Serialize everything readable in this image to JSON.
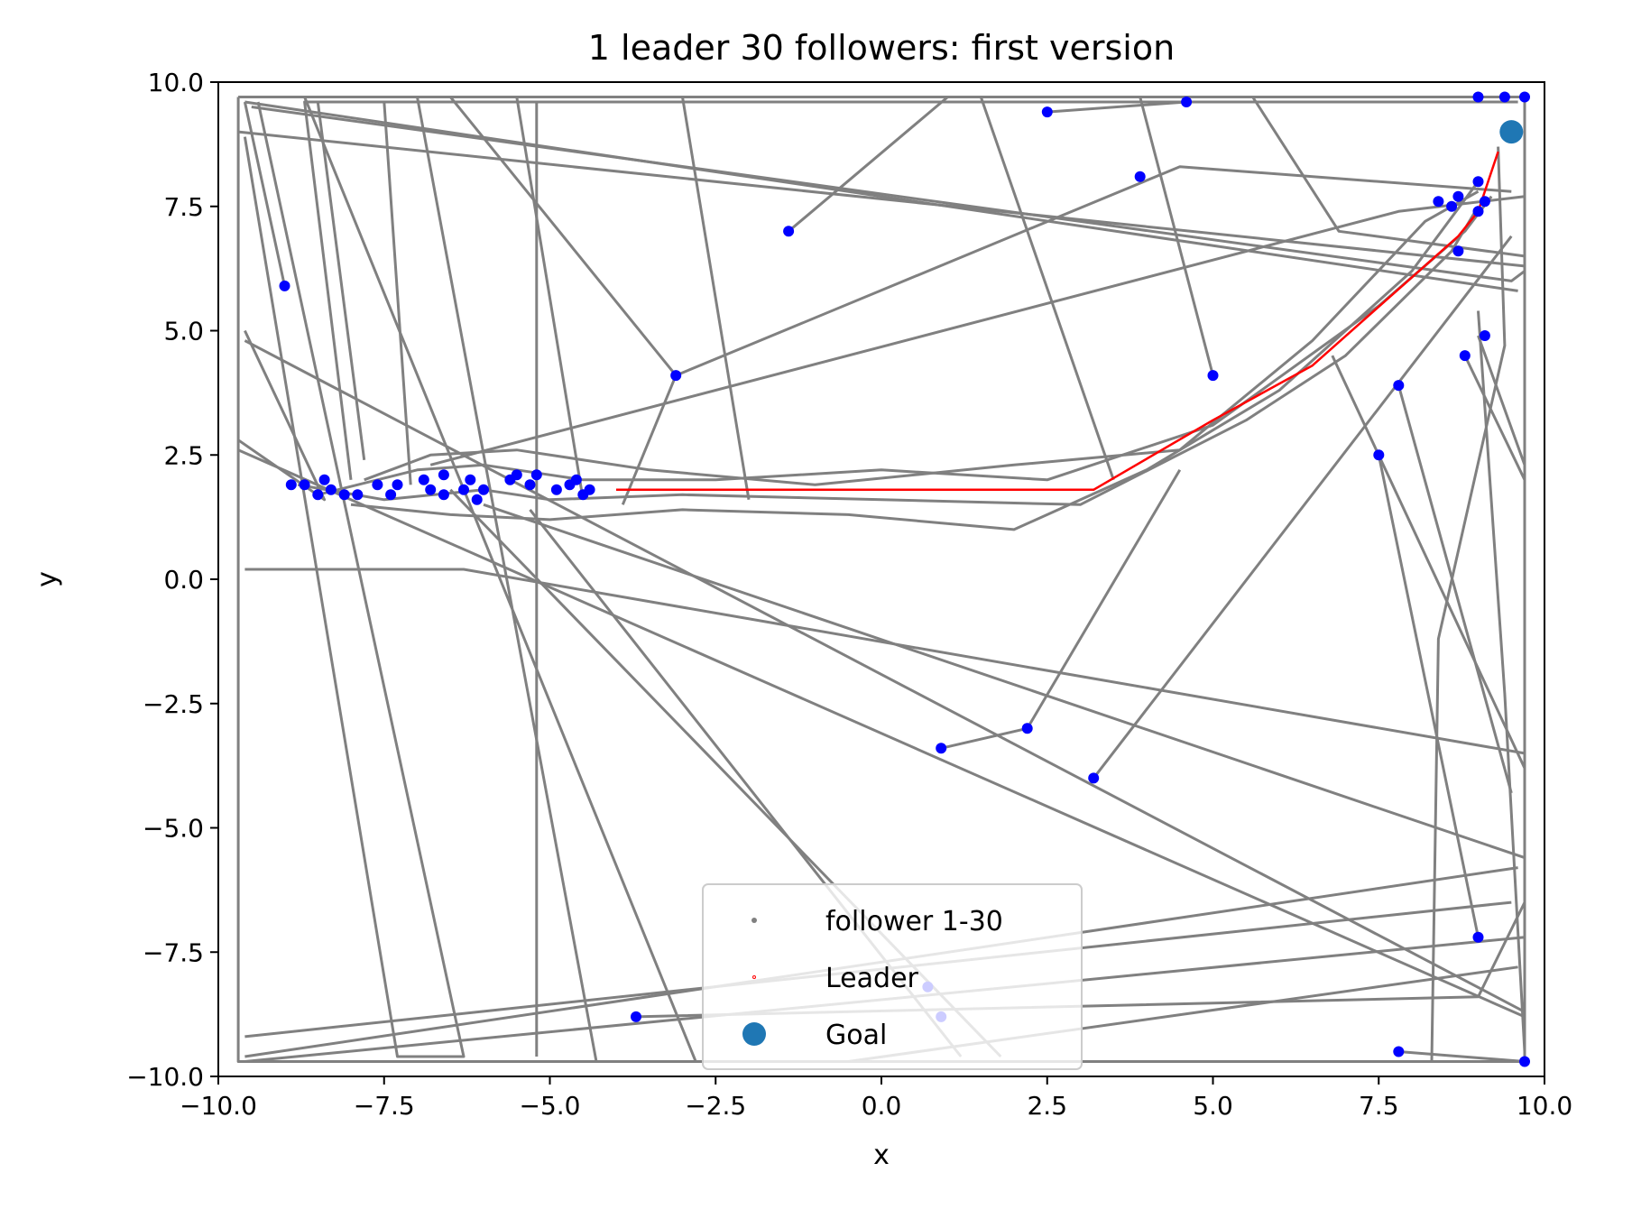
{
  "chart_data": {
    "type": "line",
    "title": "1 leader 30 followers: first version",
    "xlabel": "x",
    "ylabel": "y",
    "xlim": [
      -10,
      10
    ],
    "ylim": [
      -10,
      10
    ],
    "xticks": [
      "−10.0",
      "−7.5",
      "−5.0",
      "−2.5",
      "0.0",
      "2.5",
      "5.0",
      "7.5",
      "10.0"
    ],
    "yticks": [
      "−10.0",
      "−7.5",
      "−5.0",
      "−2.5",
      "0.0",
      "2.5",
      "5.0",
      "7.5",
      "10.0"
    ],
    "grid": false,
    "legend_position": "lower-center",
    "legend": [
      {
        "label": "follower 1-30",
        "color": "#808080",
        "marker": "small-point"
      },
      {
        "label": "Leader",
        "color": "#ff0000",
        "marker": "tiny-point"
      },
      {
        "label": "Goal",
        "color": "#1f77b4",
        "marker": "large-circle"
      }
    ],
    "colors": {
      "follower": "#808080",
      "leader": "#ff0000",
      "goal": "#1f77b4",
      "follower_position": "#0000ff"
    },
    "leader_path": [
      [
        -4.0,
        1.8
      ],
      [
        3.2,
        1.8
      ],
      [
        5.0,
        3.2
      ],
      [
        6.5,
        4.3
      ],
      [
        8.7,
        6.9
      ],
      [
        9.0,
        7.4
      ],
      [
        9.3,
        8.6
      ]
    ],
    "goal": [
      9.5,
      9.0
    ],
    "follower_paths": [
      [
        [
          -9.7,
          9.7
        ],
        [
          9.7,
          9.7
        ],
        [
          9.7,
          -9.7
        ],
        [
          -9.7,
          -9.7
        ],
        [
          -9.7,
          9.7
        ]
      ],
      [
        [
          -9.5,
          9.5
        ],
        [
          9.5,
          6.0
        ],
        [
          9.7,
          6.2
        ]
      ],
      [
        [
          -9.7,
          9.0
        ],
        [
          9.7,
          6.3
        ]
      ],
      [
        [
          -9.6,
          9.6
        ],
        [
          9.6,
          5.8
        ]
      ],
      [
        [
          -9.6,
          8.9
        ],
        [
          -7.3,
          -9.6
        ],
        [
          -6.3,
          -9.6
        ],
        [
          -9.4,
          9.6
        ]
      ],
      [
        [
          -7.0,
          9.7
        ],
        [
          -4.3,
          -9.7
        ],
        [
          -2.8,
          -9.7
        ],
        [
          -8.7,
          9.7
        ]
      ],
      [
        [
          -5.2,
          9.6
        ],
        [
          -5.2,
          -9.6
        ]
      ],
      [
        [
          -9.6,
          5.0
        ],
        [
          -8.4,
          1.6
        ],
        [
          -9.7,
          2.8
        ]
      ],
      [
        [
          -9.6,
          4.8
        ],
        [
          9.7,
          -8.7
        ]
      ],
      [
        [
          -9.7,
          2.6
        ],
        [
          9.7,
          -8.8
        ]
      ],
      [
        [
          -6.0,
          1.5
        ],
        [
          9.7,
          -5.6
        ]
      ],
      [
        [
          -6.5,
          1.8
        ],
        [
          1.8,
          -9.6
        ]
      ],
      [
        [
          -5.3,
          1.4
        ],
        [
          1.2,
          -9.6
        ]
      ],
      [
        [
          -6.8,
          2.3
        ],
        [
          7.8,
          7.4
        ],
        [
          9.7,
          7.7
        ]
      ],
      [
        [
          -7.8,
          2.4
        ],
        [
          -8.5,
          9.6
        ],
        [
          9.6,
          9.6
        ]
      ],
      [
        [
          -8.0,
          2.0
        ],
        [
          -8.7,
          9.6
        ],
        [
          -7.5,
          9.6
        ],
        [
          -7.1,
          1.9
        ]
      ],
      [
        [
          -3.9,
          1.5
        ],
        [
          -3.1,
          4.1
        ],
        [
          4.5,
          8.3
        ],
        [
          9.5,
          7.8
        ]
      ],
      [
        [
          -9.6,
          0.2
        ],
        [
          -6.3,
          0.2
        ],
        [
          9.7,
          -3.5
        ]
      ],
      [
        [
          -9.6,
          -9.6
        ],
        [
          9.6,
          -5.8
        ]
      ],
      [
        [
          -9.6,
          -9.2
        ],
        [
          9.5,
          -6.5
        ]
      ],
      [
        [
          -9.6,
          -9.7
        ],
        [
          9.7,
          -7.2
        ]
      ],
      [
        [
          -0.5,
          -9.7
        ],
        [
          9.6,
          -7.8
        ]
      ],
      [
        [
          -3.7,
          -8.8
        ],
        [
          9.0,
          -8.4
        ],
        [
          9.7,
          -6.5
        ]
      ],
      [
        [
          7.5,
          2.5
        ],
        [
          9.0,
          -7.2
        ]
      ],
      [
        [
          7.8,
          3.9
        ],
        [
          9.5,
          -4.3
        ]
      ],
      [
        [
          8.8,
          4.5
        ],
        [
          9.7,
          2.0
        ]
      ],
      [
        [
          9.0,
          4.9
        ],
        [
          9.7,
          2.3
        ],
        [
          9.7,
          -9.7
        ]
      ],
      [
        [
          7.8,
          -9.5
        ],
        [
          9.7,
          -9.7
        ]
      ],
      [
        [
          0.9,
          -3.4
        ],
        [
          2.2,
          -3.0
        ],
        [
          4.5,
          2.2
        ]
      ],
      [
        [
          3.2,
          -4.0
        ],
        [
          9.5,
          6.9
        ]
      ],
      [
        [
          -1.4,
          7.0
        ],
        [
          1.0,
          9.7
        ]
      ],
      [
        [
          2.5,
          9.4
        ],
        [
          4.6,
          9.6
        ]
      ],
      [
        [
          -9.0,
          5.9
        ],
        [
          -9.6,
          9.6
        ]
      ],
      [
        [
          -3.1,
          4.1
        ],
        [
          -6.5,
          9.7
        ]
      ],
      [
        [
          5.0,
          4.1
        ],
        [
          3.9,
          9.7
        ]
      ],
      [
        [
          5.6,
          9.7
        ],
        [
          6.9,
          7.0
        ],
        [
          9.7,
          6.5
        ]
      ],
      [
        [
          -4.5,
          1.6
        ],
        [
          -5.5,
          9.7
        ]
      ],
      [
        [
          -2.0,
          1.6
        ],
        [
          -3.0,
          9.7
        ]
      ],
      [
        [
          3.5,
          2.0
        ],
        [
          1.5,
          9.7
        ]
      ],
      [
        [
          6.8,
          4.5
        ],
        [
          9.7,
          -3.8
        ],
        [
          9.7,
          -9.7
        ]
      ],
      [
        [
          9.3,
          8.7
        ],
        [
          9.4,
          4.7
        ],
        [
          8.4,
          -1.2
        ],
        [
          8.3,
          -9.7
        ]
      ],
      [
        [
          9.0,
          5.4
        ],
        [
          9.4,
          -2.3
        ],
        [
          9.7,
          -9.5
        ]
      ],
      [
        [
          -8.8,
          1.9
        ],
        [
          -7.5,
          1.6
        ],
        [
          -6.0,
          1.8
        ],
        [
          -5.0,
          1.6
        ],
        [
          -3.0,
          1.7
        ],
        [
          0.0,
          1.6
        ],
        [
          3.0,
          1.5
        ],
        [
          5.5,
          3.2
        ],
        [
          7.0,
          4.5
        ],
        [
          8.6,
          6.6
        ],
        [
          9.0,
          7.5
        ]
      ],
      [
        [
          -8.5,
          1.7
        ],
        [
          -7.0,
          2.2
        ],
        [
          -6.0,
          2.3
        ],
        [
          -4.5,
          2.0
        ],
        [
          -2.5,
          2.0
        ],
        [
          0.0,
          2.2
        ],
        [
          2.5,
          2.0
        ],
        [
          5.0,
          3.1
        ],
        [
          7.5,
          5.5
        ],
        [
          8.8,
          7.0
        ],
        [
          9.2,
          7.7
        ]
      ],
      [
        [
          -8.0,
          1.5
        ],
        [
          -6.5,
          1.3
        ],
        [
          -5.0,
          1.2
        ],
        [
          -3.0,
          1.4
        ],
        [
          -0.5,
          1.3
        ],
        [
          2.0,
          1.0
        ],
        [
          4.0,
          2.2
        ],
        [
          6.0,
          3.8
        ],
        [
          8.0,
          6.2
        ],
        [
          9.0,
          8.0
        ]
      ],
      [
        [
          -7.8,
          2.0
        ],
        [
          -6.8,
          2.5
        ],
        [
          -5.5,
          2.6
        ],
        [
          -3.5,
          2.2
        ],
        [
          -1.0,
          1.9
        ],
        [
          2.0,
          2.3
        ],
        [
          4.5,
          2.6
        ],
        [
          6.5,
          4.8
        ],
        [
          8.2,
          7.2
        ],
        [
          9.0,
          7.8
        ]
      ]
    ],
    "follower_positions": [
      [
        -8.9,
        1.9
      ],
      [
        -8.7,
        1.9
      ],
      [
        -8.5,
        1.7
      ],
      [
        -8.4,
        2.0
      ],
      [
        -8.3,
        1.8
      ],
      [
        -8.1,
        1.7
      ],
      [
        -7.9,
        1.7
      ],
      [
        -7.6,
        1.9
      ],
      [
        -7.4,
        1.7
      ],
      [
        -7.3,
        1.9
      ],
      [
        -6.9,
        2.0
      ],
      [
        -6.8,
        1.8
      ],
      [
        -6.6,
        1.7
      ],
      [
        -6.6,
        2.1
      ],
      [
        -6.3,
        1.8
      ],
      [
        -6.2,
        2.0
      ],
      [
        -6.1,
        1.6
      ],
      [
        -6.0,
        1.8
      ],
      [
        -5.6,
        2.0
      ],
      [
        -5.5,
        2.1
      ],
      [
        -5.3,
        1.9
      ],
      [
        -5.2,
        2.1
      ],
      [
        -4.9,
        1.8
      ],
      [
        -4.7,
        1.9
      ],
      [
        -4.6,
        2.0
      ],
      [
        -4.5,
        1.7
      ],
      [
        -4.4,
        1.8
      ],
      [
        -9.0,
        5.9
      ],
      [
        -3.1,
        4.1
      ],
      [
        -1.4,
        7.0
      ],
      [
        2.5,
        9.4
      ],
      [
        3.9,
        8.1
      ],
      [
        4.6,
        9.6
      ],
      [
        5.0,
        4.1
      ],
      [
        7.5,
        2.5
      ],
      [
        7.8,
        3.9
      ],
      [
        8.4,
        7.6
      ],
      [
        8.6,
        7.5
      ],
      [
        8.7,
        7.7
      ],
      [
        8.7,
        6.6
      ],
      [
        8.8,
        4.5
      ],
      [
        9.0,
        7.4
      ],
      [
        9.0,
        8.0
      ],
      [
        9.1,
        7.6
      ],
      [
        9.1,
        4.9
      ],
      [
        9.0,
        9.7
      ],
      [
        9.4,
        9.7
      ],
      [
        9.7,
        9.7
      ],
      [
        0.9,
        -3.4
      ],
      [
        2.2,
        -3.0
      ],
      [
        3.2,
        -4.0
      ],
      [
        0.7,
        -8.2
      ],
      [
        0.9,
        -8.8
      ],
      [
        -3.7,
        -8.8
      ],
      [
        7.8,
        -9.5
      ],
      [
        9.0,
        -7.2
      ],
      [
        9.7,
        -9.7
      ]
    ]
  }
}
